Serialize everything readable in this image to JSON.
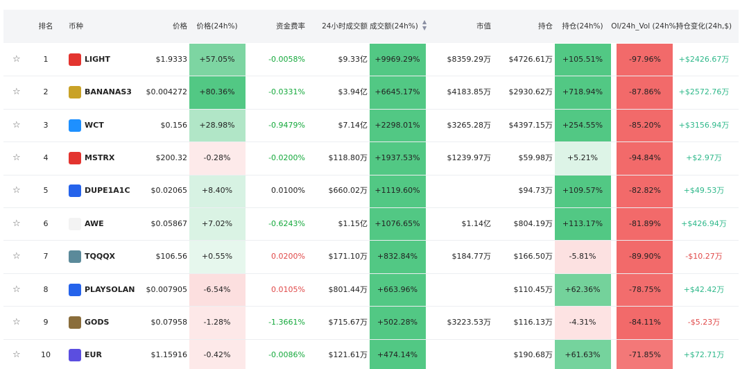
{
  "header": {
    "columns": [
      "排名",
      "币种",
      "价格",
      "价格(24h%)",
      "资金费率",
      "24小时成交额",
      "成交额(24h%)",
      "市值",
      "持仓",
      "持仓(24h%)",
      "OI/24h_Vol (24h%)",
      "持仓变化(24h,$)"
    ]
  },
  "table": {
    "rows": [
      [
        "1",
        "LIGHT",
        "$1.9333",
        "+57.05%",
        "-0.0058%",
        "$9.33亿",
        "+9969.29%",
        "$8359.29万",
        "$4726.61万",
        "+105.51%",
        "-97.96%",
        "+$2426.67万"
      ],
      [
        "2",
        "BANANAS3",
        "$0.004272",
        "+80.36%",
        "-0.0331%",
        "$3.94亿",
        "+6645.17%",
        "$4183.85万",
        "$2930.62万",
        "+718.94%",
        "-87.86%",
        "+$2572.76万"
      ],
      [
        "3",
        "WCT",
        "$0.156",
        "+28.98%",
        "-0.9479%",
        "$7.14亿",
        "+2298.01%",
        "$3265.28万",
        "$4397.15万",
        "+254.55%",
        "-85.20%",
        "+$3156.94万"
      ],
      [
        "4",
        "MSTRX",
        "$200.32",
        "-0.28%",
        "-0.0200%",
        "$118.80万",
        "+1937.53%",
        "$1239.97万",
        "$59.98万",
        "+5.21%",
        "-94.84%",
        "+$2.97万"
      ],
      [
        "5",
        "DUPE1A1C",
        "$0.02065",
        "+8.40%",
        "0.0100%",
        "$660.02万",
        "+1119.60%",
        null,
        "$94.73万",
        "+109.57%",
        "-82.82%",
        "+$49.53万"
      ],
      [
        "6",
        "AWE",
        "$0.05867",
        "+7.02%",
        "-0.6243%",
        "$1.15亿",
        "+1076.65%",
        "$1.14亿",
        "$804.19万",
        "+113.17%",
        "-81.89%",
        "+$426.94万"
      ],
      [
        "7",
        "TQQQX",
        "$106.56",
        "+0.55%",
        "0.0200%",
        "$171.10万",
        "+832.84%",
        "$184.77万",
        "$166.50万",
        "-5.81%",
        "-89.90%",
        "-$10.27万"
      ],
      [
        "8",
        "PLAYSOLAN",
        "$0.007905",
        "-6.54%",
        "0.0105%",
        "$801.44万",
        "+663.96%",
        null,
        "$110.45万",
        "+62.36%",
        "-78.75%",
        "+$42.42万"
      ],
      [
        "9",
        "GODS",
        "$0.07958",
        "-1.28%",
        "-1.3661%",
        "$715.67万",
        "+502.28%",
        "$3223.53万",
        "$116.13万",
        "-4.31%",
        "-84.11%",
        "-$5.23万"
      ],
      [
        "10",
        "EUR",
        "$1.15916",
        "-0.42%",
        "-0.0086%",
        "$121.61万",
        "+474.14%",
        null,
        "$190.68万",
        "+61.63%",
        "-71.85%",
        "+$72.71万"
      ]
    ]
  }
}
